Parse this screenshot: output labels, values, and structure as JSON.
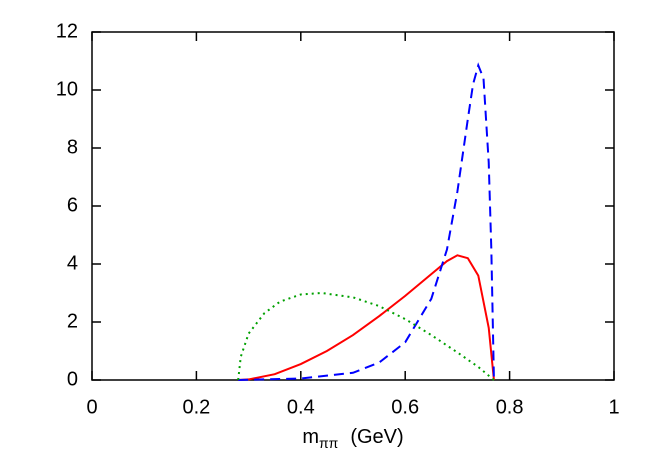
{
  "chart_data": {
    "type": "line",
    "xlabel": [
      "m",
      "ππ",
      "(GeV)"
    ],
    "xlim": [
      0,
      1
    ],
    "xticks": [
      0,
      0.2,
      0.4,
      0.6,
      0.8,
      1
    ],
    "ylim": [
      0,
      12
    ],
    "yticks": [
      0,
      2,
      4,
      6,
      8,
      10,
      12
    ],
    "grid": false,
    "series": [
      {
        "color": "#ff0000",
        "style": "solid",
        "x": [
          0.28,
          0.3,
          0.35,
          0.4,
          0.45,
          0.5,
          0.55,
          0.6,
          0.65,
          0.68,
          0.7,
          0.72,
          0.74,
          0.76,
          0.77
        ],
        "values": [
          0,
          0.02,
          0.2,
          0.55,
          1.0,
          1.55,
          2.2,
          2.9,
          3.65,
          4.1,
          4.3,
          4.2,
          3.6,
          1.8,
          0
        ]
      },
      {
        "color": "#0000ff",
        "style": "dashed",
        "x": [
          0.28,
          0.4,
          0.5,
          0.55,
          0.6,
          0.65,
          0.68,
          0.7,
          0.72,
          0.73,
          0.74,
          0.75,
          0.76,
          0.765,
          0.77
        ],
        "values": [
          0,
          0.05,
          0.25,
          0.6,
          1.3,
          2.8,
          4.5,
          6.5,
          9.0,
          10.2,
          10.85,
          10.4,
          7.5,
          4.5,
          0
        ]
      },
      {
        "color": "#00a000",
        "style": "dotted",
        "x": [
          0.28,
          0.285,
          0.3,
          0.33,
          0.36,
          0.4,
          0.44,
          0.5,
          0.55,
          0.6,
          0.65,
          0.7,
          0.74,
          0.77
        ],
        "values": [
          0,
          0.8,
          1.6,
          2.3,
          2.7,
          2.95,
          3.0,
          2.85,
          2.55,
          2.1,
          1.55,
          0.95,
          0.45,
          0
        ]
      }
    ]
  }
}
